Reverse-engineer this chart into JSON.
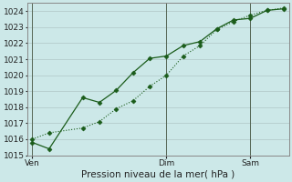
{
  "title": "Pression niveau de la mer( hPa )",
  "bg_color": "#cce8e8",
  "grid_color": "#b8d0d0",
  "line_color": "#1a5c1a",
  "ylim": [
    1015,
    1024.5
  ],
  "yticks": [
    1015,
    1016,
    1017,
    1018,
    1019,
    1020,
    1021,
    1022,
    1023,
    1024
  ],
  "xtick_labels": [
    "Ven",
    "Dim",
    "Sam"
  ],
  "xtick_positions": [
    0,
    8,
    13
  ],
  "vline_positions": [
    0,
    8,
    13
  ],
  "xlim": [
    -0.3,
    15.3
  ],
  "series1_x": [
    0,
    1,
    3,
    4,
    5,
    6,
    7,
    8,
    9,
    10,
    11,
    12,
    13,
    14,
    15
  ],
  "series1_y": [
    1015.8,
    1015.4,
    1018.6,
    1018.3,
    1019.05,
    1020.15,
    1021.05,
    1021.2,
    1021.85,
    1022.1,
    1022.9,
    1023.45,
    1023.55,
    1024.05,
    1024.15
  ],
  "series2_x": [
    0,
    1,
    3,
    4,
    5,
    6,
    7,
    8,
    9,
    10,
    11,
    12,
    13,
    14,
    15
  ],
  "series2_y": [
    1016.0,
    1016.4,
    1016.7,
    1017.1,
    1017.9,
    1018.4,
    1019.3,
    1020.0,
    1021.2,
    1021.85,
    1022.85,
    1023.35,
    1023.75,
    1024.05,
    1024.2
  ],
  "title_fontsize": 7.5,
  "tick_fontsize": 6.5
}
